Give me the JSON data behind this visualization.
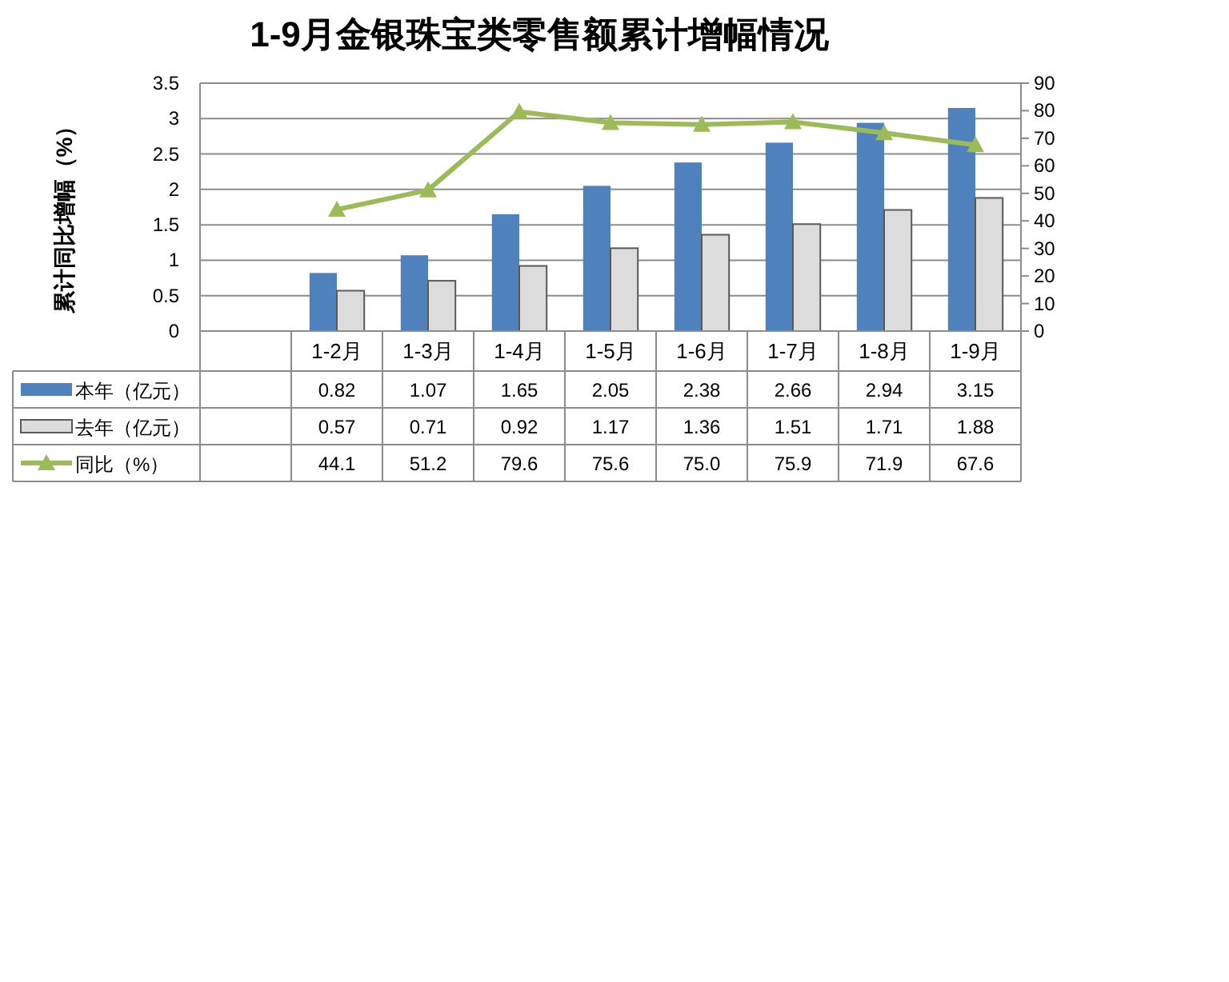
{
  "chart_data": {
    "type": "bar",
    "title": "1-9月金银珠宝类零售额累计增幅情况",
    "ylabel": "累计同比增幅（%）",
    "categories": [
      null,
      "1-2月",
      "1-3月",
      "1-4月",
      "1-5月",
      "1-6月",
      "1-7月",
      "1-8月",
      "1-9月"
    ],
    "series": [
      {
        "name": "本年（亿元）",
        "color": "#4f81bd",
        "values": [
          null,
          0.82,
          1.07,
          1.65,
          2.05,
          2.38,
          2.66,
          2.94,
          3.15
        ],
        "value_labels": [
          null,
          "0.82",
          "1.07",
          "1.65",
          "2.05",
          "2.38",
          "2.66",
          "2.94",
          "3.15"
        ]
      },
      {
        "name": "去年（亿元）",
        "color": "#dcdcdc",
        "values": [
          null,
          0.57,
          0.71,
          0.92,
          1.17,
          1.36,
          1.51,
          1.71,
          1.88
        ],
        "value_labels": [
          null,
          "0.57",
          "0.71",
          "0.92",
          "1.17",
          "1.36",
          "1.51",
          "1.71",
          "1.88"
        ]
      },
      {
        "name": "同比（%）",
        "type": "line",
        "axis": "y2",
        "color": "#9bbb59",
        "values": [
          null,
          44.1,
          51.2,
          79.6,
          75.6,
          75.0,
          75.9,
          71.9,
          67.6
        ],
        "value_labels": [
          null,
          "44.1",
          "51.2",
          "79.6",
          "75.6",
          "75.0",
          "75.9",
          "71.9",
          "67.6"
        ]
      }
    ],
    "ylim": [
      0,
      3.5
    ],
    "yticks": [
      0,
      0.5,
      1,
      1.5,
      2,
      2.5,
      3,
      3.5
    ],
    "y2lim": [
      0,
      90
    ],
    "y2ticks": [
      0,
      10,
      20,
      30,
      40,
      50,
      60,
      70,
      80,
      90
    ],
    "grid": "y",
    "legend": "bottom left",
    "marker": "triangle",
    "line_style": "solid"
  }
}
